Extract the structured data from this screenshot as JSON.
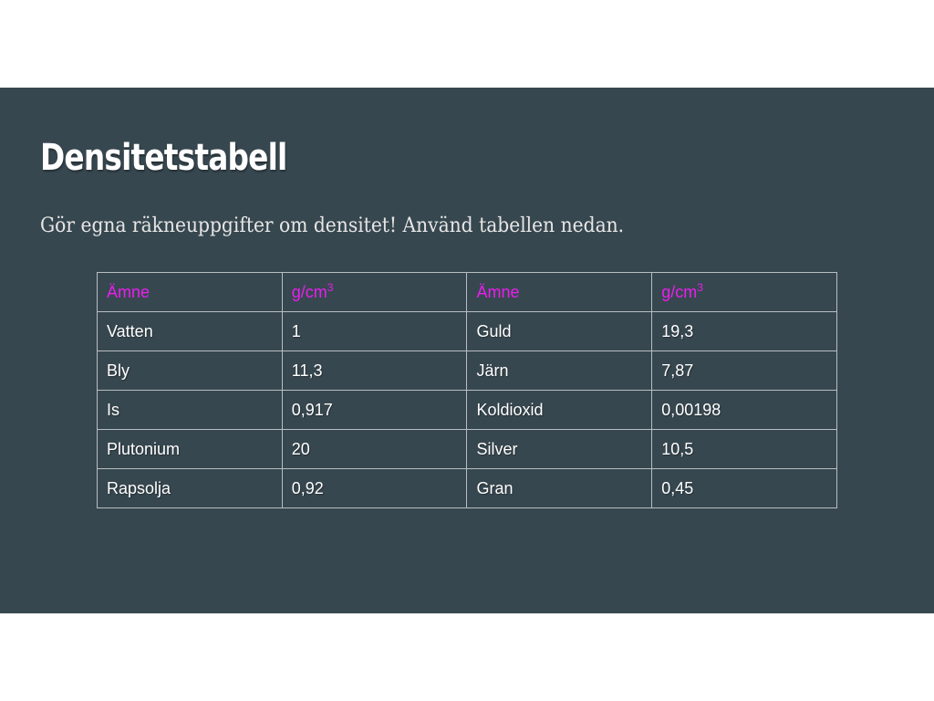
{
  "slide": {
    "title": "Densitetstabell",
    "subtitle": "Gör egna räkneuppgifter om densitet! Använd tabellen nedan.",
    "background_color": "#37474f",
    "header_color": "#e91ef0"
  },
  "table": {
    "headers": [
      {
        "label": "Ämne",
        "exp": ""
      },
      {
        "label": "g/cm",
        "exp": "3"
      },
      {
        "label": "Ämne",
        "exp": ""
      },
      {
        "label": "g/cm",
        "exp": "3"
      }
    ],
    "rows": [
      [
        "Vatten",
        "1",
        "Guld",
        "19,3"
      ],
      [
        "Bly",
        "11,3",
        "Järn",
        "7,87"
      ],
      [
        "Is",
        "0,917",
        "Koldioxid",
        "0,00198"
      ],
      [
        "Plutonium",
        "20",
        "Silver",
        "10,5"
      ],
      [
        "Rapsolja",
        "0,92",
        "Gran",
        "0,45"
      ]
    ]
  }
}
